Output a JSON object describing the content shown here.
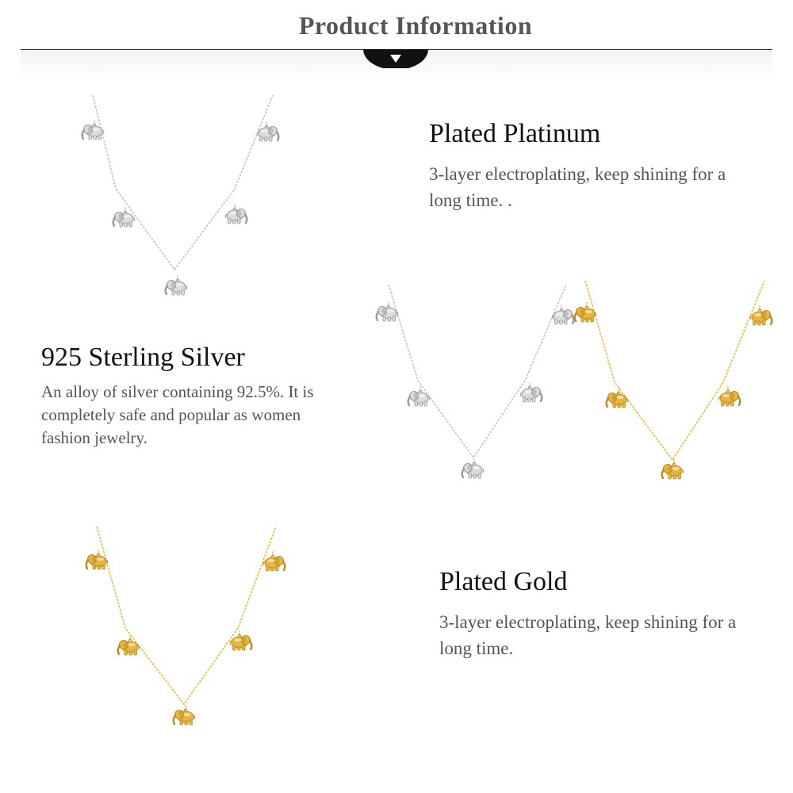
{
  "header": {
    "title": "Product Information",
    "toggle_icon": "chevron-down-icon"
  },
  "features": [
    {
      "title": "Plated Platinum",
      "description": "3-layer electroplating, keep shining for a long time. ."
    },
    {
      "title": "925 Sterling Silver",
      "description": "An alloy of silver containing 92.5%. It is completely safe and popular as women fashion jewelry."
    },
    {
      "title": "Plated Gold",
      "description": "3-layer electroplating, keep shining for a long time."
    }
  ],
  "images": [
    {
      "name": "silver-elephant-necklace",
      "finish": "silver",
      "colors": {
        "chain": "#c4c4c4",
        "charm": "#dcdcdc",
        "shade": "#9a9a9a"
      }
    },
    {
      "name": "silver-elephant-necklace-pair-view",
      "finish": "silver",
      "colors": {
        "chain": "#c4c4c4",
        "charm": "#dcdcdc",
        "shade": "#9a9a9a"
      }
    },
    {
      "name": "gold-elephant-necklace-pair-view",
      "finish": "gold",
      "colors": {
        "chain": "#e6b948",
        "charm": "#e8b640",
        "shade": "#b98a1f"
      }
    },
    {
      "name": "gold-elephant-necklace",
      "finish": "gold",
      "colors": {
        "chain": "#e6b948",
        "charm": "#e8b640",
        "shade": "#b98a1f"
      }
    }
  ],
  "colors": {
    "header_text": "#555555",
    "rule": "#333333",
    "title_text": "#111111",
    "body_text": "#555555"
  }
}
